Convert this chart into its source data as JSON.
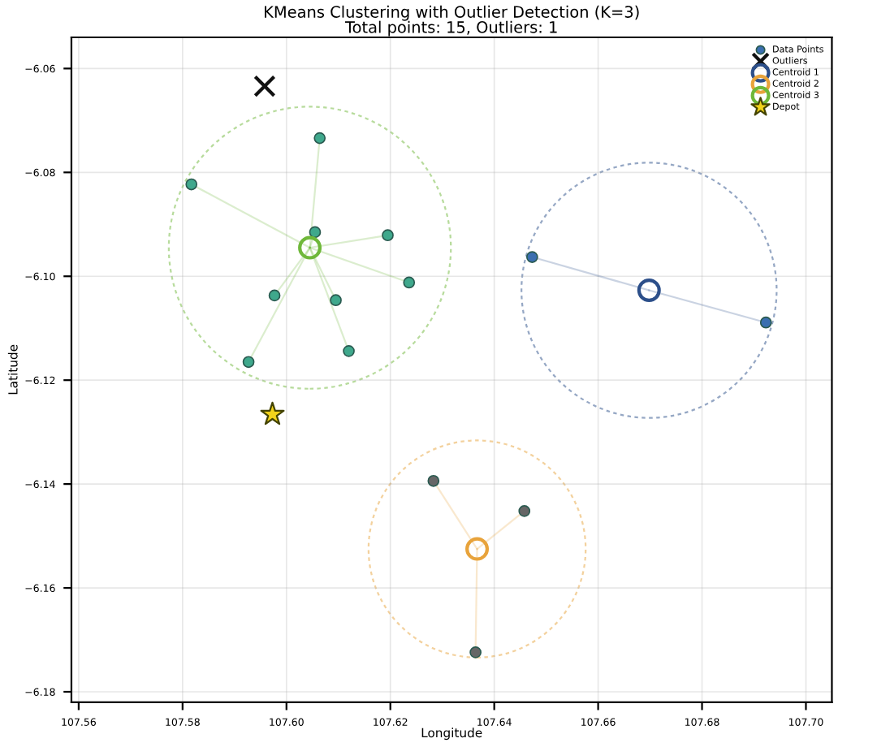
{
  "chart_data": {
    "type": "scatter",
    "title": "KMeans Clustering with Outlier Detection (K=3)",
    "subtitle": "Total points: 15, Outliers: 1",
    "xlabel": "Longitude",
    "ylabel": "Latitude",
    "xlim": [
      107.5586,
      107.705
    ],
    "ylim": [
      -6.182,
      -6.054
    ],
    "xticks": [
      107.56,
      107.58,
      {
        "value": 107.6,
        "label": "107.60"
      },
      107.62,
      107.64,
      107.66,
      107.68,
      {
        "value": 107.7,
        "label": "107.70"
      }
    ],
    "yticks": [
      {
        "value": -6.18,
        "label": "−6.18"
      },
      {
        "value": -6.16,
        "label": "−6.16"
      },
      {
        "value": -6.14,
        "label": "−6.14"
      },
      {
        "value": -6.12,
        "label": "−6.12"
      },
      {
        "value": -6.1,
        "label": "−6.10"
      },
      {
        "value": -6.08,
        "label": "−6.08"
      },
      {
        "value": -6.06,
        "label": "−6.06"
      }
    ],
    "grid": true,
    "legend": "top right",
    "series": [
      {
        "name": "Data Points",
        "marker": "circle",
        "color": "#3b6fb0",
        "x": [
          107.6473,
          107.6923
        ],
        "values": [
          -6.0963,
          -6.1089
        ]
      },
      {
        "marker": "circle",
        "color": "#666666",
        "x": [
          107.6283,
          107.6458,
          107.6364
        ],
        "values": [
          -6.1394,
          -6.1452,
          -6.1724
        ]
      },
      {
        "marker": "circle",
        "color": "#3fa88c",
        "x": [
          107.5817,
          107.6064,
          107.6055,
          107.6195,
          107.6236,
          107.5977,
          107.6095,
          107.612,
          107.5927
        ],
        "values": [
          -6.0823,
          -6.0734,
          -6.0915,
          -6.0921,
          -6.1012,
          -6.1037,
          -6.1046,
          -6.1144,
          -6.1165
        ]
      },
      {
        "name": "Outliers",
        "marker": "cross",
        "color": "#111111",
        "x": [
          107.5958
        ],
        "values": [
          -6.0634
        ]
      },
      {
        "name": "Centroid 1",
        "marker": "circle",
        "color": "#2c4f8a",
        "x": [
          107.6698
        ],
        "values": [
          -6.1027
        ]
      },
      {
        "name": "Centroid 2",
        "marker": "circle",
        "color": "#e8a33b",
        "x": [
          107.6367
        ],
        "values": [
          -6.1525
        ]
      },
      {
        "name": "Centroid 3",
        "marker": "circle",
        "color": "#6fb83a",
        "x": [
          107.6045
        ],
        "values": [
          -6.0945
        ]
      },
      {
        "name": "Depot",
        "marker": "star",
        "color": "#f2d31b",
        "x": [
          107.5973
        ],
        "values": [
          -6.1266
        ]
      }
    ]
  }
}
